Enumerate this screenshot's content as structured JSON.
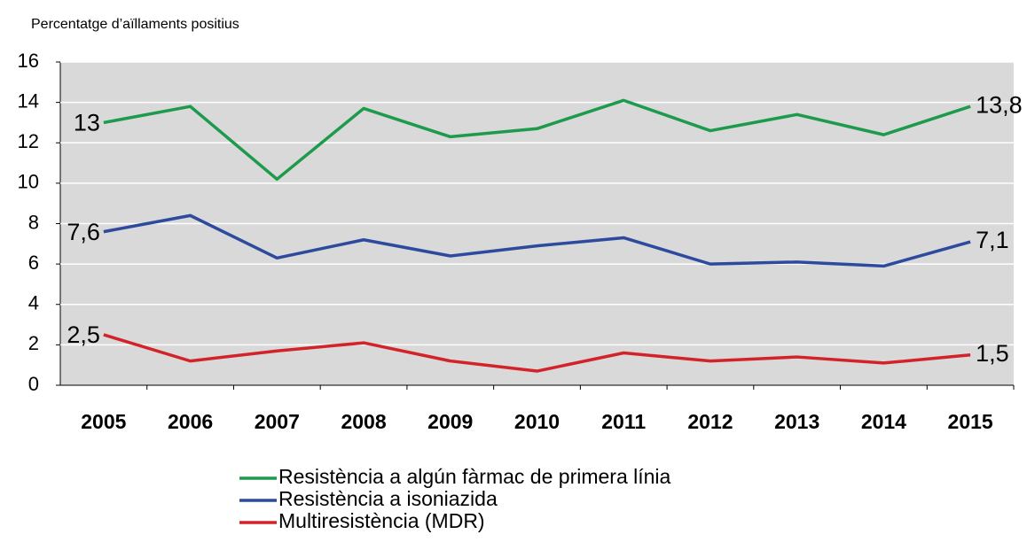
{
  "chart_data": {
    "type": "line",
    "title": "Percentatge d’aïllaments positius",
    "categories": [
      "2005",
      "2006",
      "2007",
      "2008",
      "2009",
      "2010",
      "2011",
      "2012",
      "2013",
      "2014",
      "2015"
    ],
    "series": [
      {
        "name": "Resistència a algún fàrmac de primera línia",
        "color": "#1e9a4c",
        "values": [
          13,
          13.8,
          10.2,
          13.7,
          12.3,
          12.7,
          14.1,
          12.6,
          13.4,
          12.4,
          13.8
        ],
        "value_labels": [
          "13",
          null,
          null,
          null,
          null,
          null,
          null,
          null,
          null,
          null,
          "13,8"
        ]
      },
      {
        "name": "Resistència a isoniazida",
        "color": "#2e4a9e",
        "values": [
          7.6,
          8.4,
          6.3,
          7.2,
          6.4,
          6.9,
          7.3,
          6.0,
          6.1,
          5.9,
          7.1
        ],
        "value_labels": [
          "7,6",
          null,
          null,
          null,
          null,
          null,
          null,
          null,
          null,
          null,
          "7,1"
        ]
      },
      {
        "name": "Multiresistència (MDR)",
        "color": "#d3232a",
        "values": [
          2.5,
          1.2,
          1.7,
          2.1,
          1.2,
          0.7,
          1.6,
          1.2,
          1.4,
          1.1,
          1.5
        ],
        "value_labels": [
          "2,5",
          null,
          null,
          null,
          null,
          null,
          null,
          null,
          null,
          null,
          "1,5"
        ]
      }
    ],
    "ylim": [
      0,
      16
    ],
    "yticks": [
      0,
      2,
      4,
      6,
      8,
      10,
      12,
      14,
      16
    ],
    "grid": true
  }
}
